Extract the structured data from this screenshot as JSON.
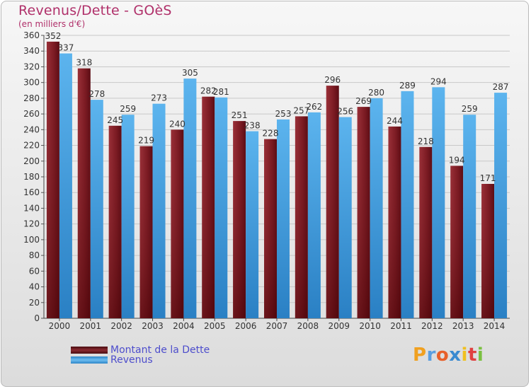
{
  "title": "Revenus/Dette - GOèS",
  "subtitle": "(en milliers d'€)",
  "colors": {
    "dette": "#7a1a22",
    "revenus": "#4aa6e8",
    "title": "#b0306a",
    "legend_text": "#4d4dcc"
  },
  "logo": {
    "text": "Proxiti"
  },
  "chart_data": {
    "type": "bar",
    "title": "Revenus/Dette - GOèS",
    "ylabel": "(en milliers d'€)",
    "xlabel": "",
    "categories": [
      "2000",
      "2001",
      "2002",
      "2003",
      "2004",
      "2005",
      "2006",
      "2007",
      "2008",
      "2009",
      "2010",
      "2011",
      "2012",
      "2013",
      "2014"
    ],
    "ylim": [
      0,
      360
    ],
    "yticks": [
      0,
      20,
      40,
      60,
      80,
      100,
      120,
      140,
      160,
      180,
      200,
      220,
      240,
      260,
      280,
      300,
      320,
      340,
      360
    ],
    "grid": true,
    "legend_position": "bottom-left",
    "series": [
      {
        "name": "Montant de la Dette",
        "values": [
          352,
          318,
          245,
          219,
          240,
          282,
          251,
          228,
          257,
          296,
          269,
          244,
          218,
          194,
          171
        ]
      },
      {
        "name": "Revenus",
        "values": [
          337,
          278,
          259,
          273,
          305,
          281,
          238,
          253,
          262,
          256,
          280,
          289,
          294,
          259,
          287
        ]
      }
    ]
  }
}
